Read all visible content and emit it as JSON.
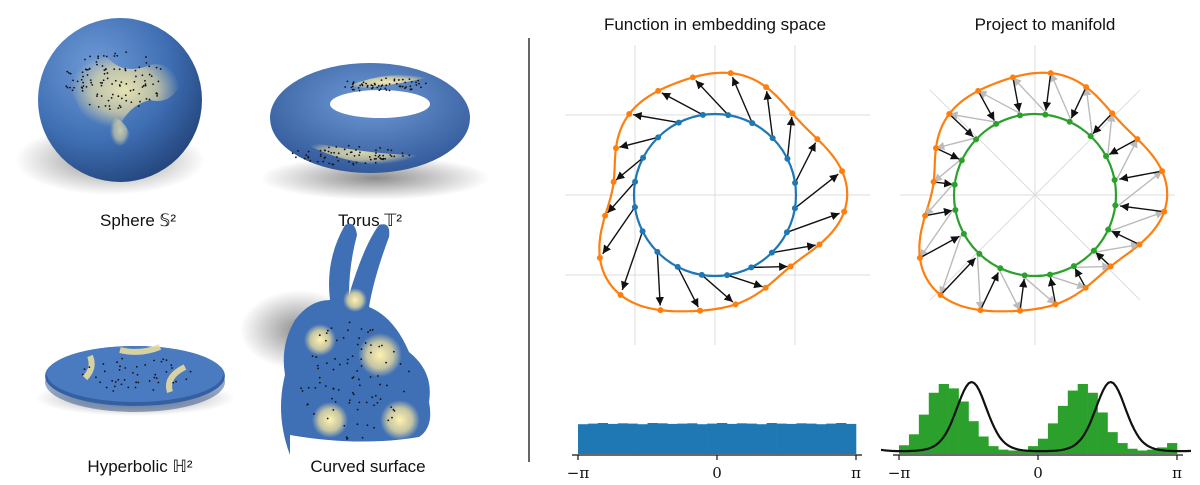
{
  "surfaces": [
    {
      "label": "Sphere 𝕊²"
    },
    {
      "label": "Torus 𝕋²"
    },
    {
      "label": "Hyperbolic ℍ²"
    },
    {
      "label": "Curved surface"
    }
  ],
  "panels": [
    {
      "title": "Function in embedding space",
      "x_ticks": [
        "−π",
        "0",
        "π"
      ]
    },
    {
      "title": "Project to manifold",
      "x_ticks": [
        "−π",
        "0",
        "π"
      ]
    }
  ],
  "colors": {
    "surface_blue": "#3f6fb4",
    "density_yellow": "#f4e59a",
    "curve_orange": "#ff7f0e",
    "circle_blue": "#1f77b4",
    "circle_green": "#2ca02c",
    "grid": "#dddddd",
    "arrow": "#111111",
    "arrow_grey": "#bbbbbb"
  },
  "histograms": [
    {
      "values": [
        0.98,
        1.0,
        1.02,
        0.99,
        1.01,
        1.0,
        0.98,
        1.02,
        1.01,
        0.99,
        1.0,
        1.01,
        0.98,
        1.0,
        1.02,
        0.99,
        1.01,
        1.0,
        0.98,
        1.02,
        1.0,
        0.99,
        1.01,
        1.0,
        0.98,
        1.0,
        1.02,
        0.99
      ]
    },
    {
      "values": [
        0.2,
        0.45,
        0.9,
        1.4,
        1.6,
        1.5,
        1.2,
        0.75,
        0.4,
        0.18,
        0.1,
        0.08,
        0.1,
        0.18,
        0.35,
        0.7,
        1.1,
        1.45,
        1.6,
        1.4,
        0.95,
        0.5,
        0.25,
        0.12,
        0.08,
        0.1,
        0.15,
        0.25
      ]
    }
  ]
}
